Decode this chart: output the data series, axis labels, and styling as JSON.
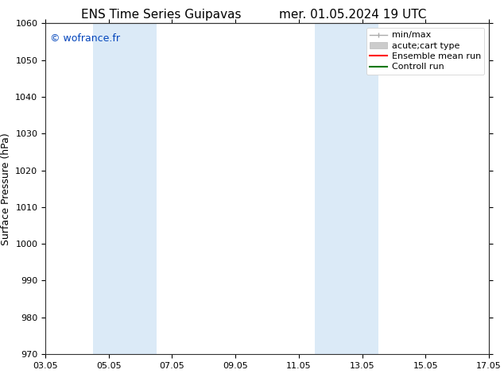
{
  "title_left": "ENS Time Series Guipavas",
  "title_right": "mer. 01.05.2024 19 UTC",
  "ylabel": "Surface Pressure (hPa)",
  "ylim": [
    970,
    1060
  ],
  "yticks": [
    970,
    980,
    990,
    1000,
    1010,
    1020,
    1030,
    1040,
    1050,
    1060
  ],
  "xtick_labels": [
    "03.05",
    "05.05",
    "07.05",
    "09.05",
    "11.05",
    "13.05",
    "15.05",
    "17.05"
  ],
  "xtick_positions": [
    0,
    2,
    4,
    6,
    8,
    10,
    12,
    14
  ],
  "xlim": [
    0,
    14
  ],
  "shaded_bands": [
    {
      "x_start": 1.5,
      "x_end": 3.5,
      "color": "#dbeaf7"
    },
    {
      "x_start": 8.5,
      "x_end": 10.5,
      "color": "#dbeaf7"
    }
  ],
  "watermark_text": "© wofrance.fr",
  "watermark_color": "#0044bb",
  "background_color": "#ffffff",
  "legend_items": [
    {
      "label": "min/max",
      "color": "#aaaaaa",
      "lw": 1.0
    },
    {
      "label": "acute;cart type",
      "color": "#cccccc",
      "lw": 7
    },
    {
      "label": "Ensemble mean run",
      "color": "#ff0000",
      "lw": 1.5
    },
    {
      "label": "Controll run",
      "color": "#007700",
      "lw": 1.5
    }
  ],
  "title_fontsize": 11,
  "ylabel_fontsize": 9,
  "tick_fontsize": 8,
  "watermark_fontsize": 9,
  "legend_fontsize": 8
}
